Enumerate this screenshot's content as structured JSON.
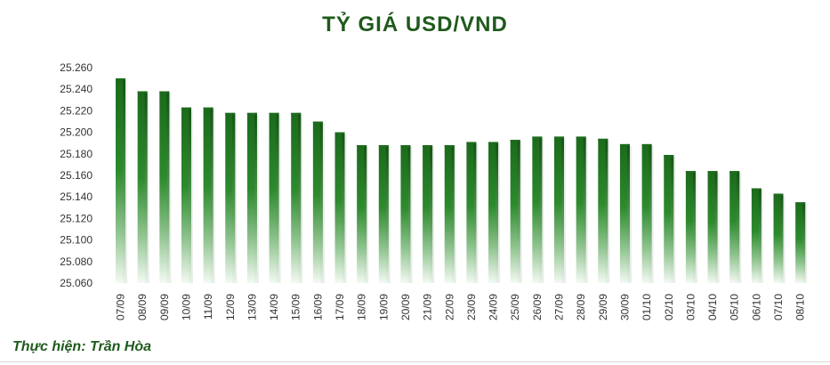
{
  "chart_data": {
    "type": "bar",
    "title": "TỶ GIÁ USD/VND",
    "xlabel": "",
    "ylabel": "",
    "ylim": [
      25060,
      25260
    ],
    "y_ticks": [
      "25.260",
      "25.240",
      "25.220",
      "25.200",
      "25.180",
      "25.160",
      "25.140",
      "25.120",
      "25.100",
      "25.080",
      "25.060"
    ],
    "y_tick_values": [
      25260,
      25240,
      25220,
      25200,
      25180,
      25160,
      25140,
      25120,
      25100,
      25080,
      25060
    ],
    "categories": [
      "07/09",
      "08/09",
      "09/09",
      "10/09",
      "11/09",
      "12/09",
      "13/09",
      "14/09",
      "15/09",
      "16/09",
      "17/09",
      "18/09",
      "19/09",
      "20/09",
      "21/09",
      "22/09",
      "23/09",
      "24/09",
      "25/09",
      "26/09",
      "27/09",
      "28/09",
      "29/09",
      "30/09",
      "01/10",
      "02/10",
      "03/10",
      "04/10",
      "05/10",
      "06/10",
      "07/10",
      "08/10"
    ],
    "values": [
      25250,
      25238,
      25238,
      25223,
      25223,
      25218,
      25218,
      25218,
      25218,
      25210,
      25200,
      25188,
      25188,
      25188,
      25188,
      25188,
      25191,
      25191,
      25193,
      25196,
      25196,
      25196,
      25194,
      25189,
      25189,
      25179,
      25164,
      25164,
      25164,
      25148,
      25143,
      25135
    ],
    "grid": false,
    "legend": "none",
    "bar_color": "#1f6b1f"
  },
  "credit": "Thực hiện: Trần Hòa"
}
